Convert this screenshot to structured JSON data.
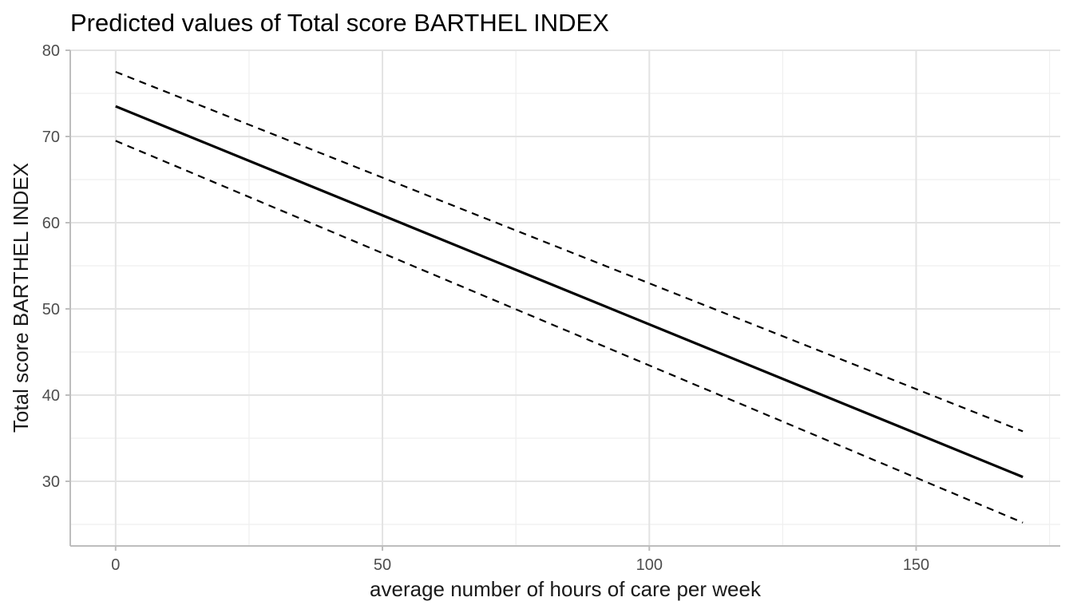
{
  "chart_data": {
    "type": "line",
    "title": "Predicted values of Total score BARTHEL INDEX",
    "xlabel": "average number of hours of care per week",
    "ylabel": "Total score BARTHEL INDEX",
    "xlim": [
      -8.5,
      177
    ],
    "ylim": [
      22.5,
      80
    ],
    "x_ticks": [
      0,
      50,
      100,
      150
    ],
    "x_tick_labels": [
      "0",
      "50",
      "100",
      "150"
    ],
    "y_ticks": [
      30,
      40,
      50,
      60,
      70,
      80
    ],
    "y_tick_labels": [
      "30",
      "40",
      "50",
      "60",
      "70",
      "80"
    ],
    "x_minor_ticks": [
      25,
      75,
      125,
      175
    ],
    "y_minor_ticks": [
      25,
      35,
      45,
      55,
      65,
      75
    ],
    "grid": true,
    "legend": "none",
    "series": [
      {
        "role": "prediction",
        "style": "solid",
        "color": "#000000",
        "x": [
          0,
          170
        ],
        "y": [
          73.5,
          30.5
        ]
      },
      {
        "role": "upper-ci",
        "style": "dashed",
        "color": "#000000",
        "x": [
          0,
          170
        ],
        "y": [
          77.5,
          35.8
        ]
      },
      {
        "role": "lower-ci",
        "style": "dashed",
        "color": "#000000",
        "x": [
          0,
          170
        ],
        "y": [
          69.5,
          25.2
        ]
      }
    ]
  }
}
